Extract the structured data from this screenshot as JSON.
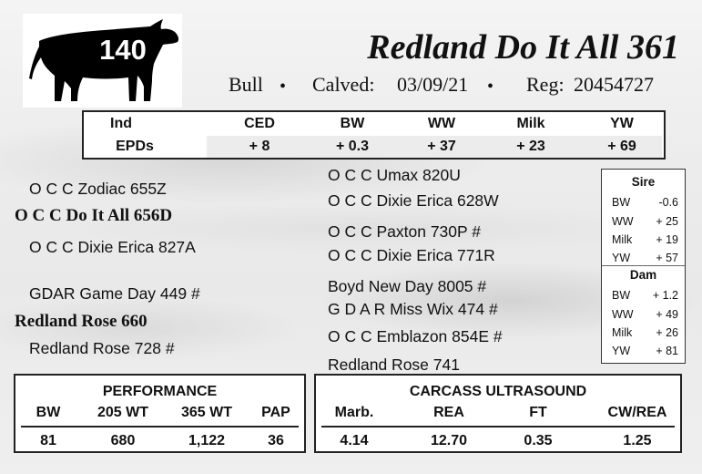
{
  "header": {
    "tag_number": "140",
    "animal_name": "Redland Do It All 361",
    "sex": "Bull",
    "bullet": "•",
    "calved_label": "Calved:",
    "calved_date": "03/09/21",
    "reg_label": "Reg:",
    "reg_number": "20454727"
  },
  "epd": {
    "label_top": "Ind",
    "label_bottom": "EPDs",
    "columns": [
      {
        "label": "CED",
        "value": "+ 8"
      },
      {
        "label": "BW",
        "value": "+ 0.3"
      },
      {
        "label": "WW",
        "value": "+ 37"
      },
      {
        "label": "Milk",
        "value": "+ 23"
      },
      {
        "label": "YW",
        "value": "+ 69"
      }
    ]
  },
  "pedigree": {
    "sire": "O C C Do It All 656D",
    "sire_sire": "O C C Zodiac 655Z",
    "sire_dam": "O C C Dixie Erica 827A",
    "sire_sire_sire": "O C C Umax 820U",
    "sire_sire_dam": "O C C Dixie Erica 628W",
    "sire_dam_sire": "O C C Paxton 730P #",
    "sire_dam_dam": "O C C Dixie Erica 771R",
    "dam": "Redland Rose 660",
    "dam_sire": "GDAR Game Day 449 #",
    "dam_dam": "Redland Rose 728 #",
    "dam_sire_sire": "Boyd New Day 8005 #",
    "dam_sire_dam": "G D A R Miss Wix 474 #",
    "dam_dam_sire": "O C C Emblazon 854E #",
    "dam_dam_dam": "Redland Rose 741"
  },
  "sire_dam_epds": {
    "sire_title": "Sire",
    "sire": [
      {
        "label": "BW",
        "value": "-0.6"
      },
      {
        "label": "WW",
        "value": "+ 25"
      },
      {
        "label": "Milk",
        "value": "+ 19"
      },
      {
        "label": "YW",
        "value": "+ 57"
      }
    ],
    "dam_title": "Dam",
    "dam": [
      {
        "label": "BW",
        "value": "+ 1.2"
      },
      {
        "label": "WW",
        "value": "+ 49"
      },
      {
        "label": "Milk",
        "value": "+ 26"
      },
      {
        "label": "YW",
        "value": "+ 81"
      }
    ]
  },
  "performance": {
    "title": "PERFORMANCE",
    "columns": [
      {
        "label": "BW",
        "value": "81"
      },
      {
        "label": "205 WT",
        "value": "680"
      },
      {
        "label": "365 WT",
        "value": "1,122"
      },
      {
        "label": "PAP",
        "value": "36"
      }
    ]
  },
  "carcass": {
    "title": "CARCASS ULTRASOUND",
    "columns": [
      {
        "label": "Marb.",
        "value": "4.14"
      },
      {
        "label": "REA",
        "value": "12.70"
      },
      {
        "label": "FT",
        "value": "0.35"
      },
      {
        "label": "CW/REA",
        "value": "1.25"
      }
    ]
  },
  "colors": {
    "text": "#111111",
    "bull_silhouette": "#000000",
    "box_background": "#ffffff"
  },
  "icons": [
    "bull-silhouette-icon"
  ]
}
